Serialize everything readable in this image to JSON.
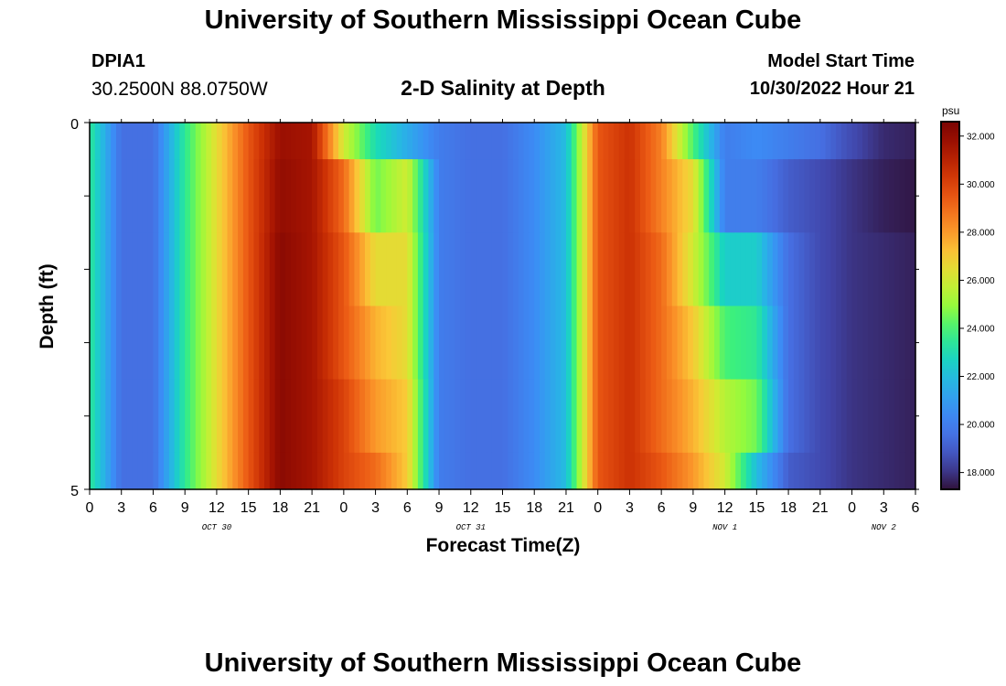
{
  "header": {
    "title": "University of Southern Mississippi Ocean Cube",
    "station_id": "DPIA1",
    "coordinates": "30.2500N  88.0750W",
    "subtitle": "2-D Salinity at Depth",
    "model_start_label": "Model Start Time",
    "model_start_value": "10/30/2022 Hour 21"
  },
  "footer": {
    "title": "University of Southern Mississippi Ocean Cube"
  },
  "chart_data": {
    "type": "heatmap",
    "title": "2-D Salinity at Depth",
    "xlabel": "Forecast Time(Z)",
    "ylabel": "Depth (ft)",
    "colorbar_label": "psu",
    "colorbar_ticks": [
      "18.000",
      "20.000",
      "22.000",
      "24.000",
      "26.000",
      "28.000",
      "30.000",
      "32.000"
    ],
    "clim": [
      17.3,
      32.6
    ],
    "yrange": [
      0,
      5
    ],
    "y_tick_labels": [
      "0",
      "5"
    ],
    "x_tick_labels": [
      "0",
      "3",
      "6",
      "9",
      "12",
      "15",
      "18",
      "21",
      "0",
      "3",
      "6",
      "9",
      "12",
      "15",
      "18",
      "21",
      "0",
      "3",
      "6",
      "9",
      "12",
      "15",
      "18",
      "21",
      "0",
      "3",
      "6"
    ],
    "day_labels": [
      {
        "label": "OCT 30",
        "at_tick": 4
      },
      {
        "label": "OCT 31",
        "at_tick": 12
      },
      {
        "label": "NOV 1",
        "at_tick": 20
      },
      {
        "label": "NOV 2",
        "at_tick": 25
      }
    ],
    "x_step_hours": 3,
    "depth_layers": [
      "0-0.5",
      "0.5-1.5",
      "1.5-2.5",
      "2.5-3.5",
      "3.5-4.5",
      "4.5-5"
    ],
    "time_hours": [
      0,
      3,
      6,
      9,
      12,
      15,
      18,
      21,
      24,
      27,
      30,
      33,
      36,
      39,
      42,
      45,
      48,
      51,
      54,
      57,
      60,
      63,
      66,
      69,
      72,
      75,
      78
    ],
    "salinity_rows": [
      [
        23.5,
        19.5,
        19.5,
        23.5,
        26.5,
        29.5,
        31.8,
        31.5,
        26.0,
        23.0,
        21.5,
        20.0,
        19.5,
        19.5,
        20.5,
        22.0,
        29.5,
        30.5,
        28.5,
        24.0,
        20.0,
        20.5,
        20.0,
        19.5,
        18.5,
        17.8,
        17.6
      ],
      [
        23.5,
        19.5,
        19.5,
        23.5,
        26.5,
        29.5,
        32.0,
        31.5,
        29.0,
        24.5,
        26.0,
        20.0,
        19.5,
        19.5,
        20.5,
        22.0,
        29.5,
        30.5,
        28.5,
        26.5,
        20.0,
        20.0,
        19.0,
        18.5,
        18.0,
        17.6,
        17.4
      ],
      [
        23.5,
        19.5,
        19.5,
        23.5,
        26.5,
        29.5,
        32.2,
        31.5,
        29.5,
        26.5,
        26.5,
        20.0,
        19.5,
        19.5,
        20.5,
        22.0,
        29.5,
        30.5,
        29.0,
        26.0,
        22.5,
        22.5,
        19.5,
        18.5,
        18.0,
        17.8,
        17.6
      ],
      [
        23.5,
        19.5,
        19.5,
        23.5,
        26.5,
        29.5,
        32.2,
        31.5,
        29.5,
        27.5,
        26.5,
        20.0,
        19.5,
        19.5,
        20.5,
        22.0,
        29.5,
        30.5,
        29.0,
        27.0,
        24.0,
        23.5,
        19.5,
        18.5,
        18.0,
        17.8,
        17.6
      ],
      [
        23.5,
        19.5,
        19.5,
        23.5,
        26.5,
        29.5,
        32.2,
        31.5,
        30.0,
        28.0,
        27.0,
        20.0,
        19.5,
        19.5,
        20.5,
        22.0,
        29.5,
        30.5,
        29.0,
        27.5,
        25.5,
        24.5,
        19.5,
        18.5,
        18.0,
        17.8,
        17.6
      ],
      [
        23.5,
        19.5,
        19.5,
        23.5,
        26.5,
        29.5,
        32.2,
        31.5,
        30.0,
        29.0,
        27.0,
        20.0,
        19.5,
        19.5,
        20.5,
        22.0,
        29.5,
        30.5,
        29.5,
        28.0,
        26.0,
        22.0,
        19.0,
        18.5,
        18.0,
        17.8,
        17.6
      ]
    ]
  }
}
